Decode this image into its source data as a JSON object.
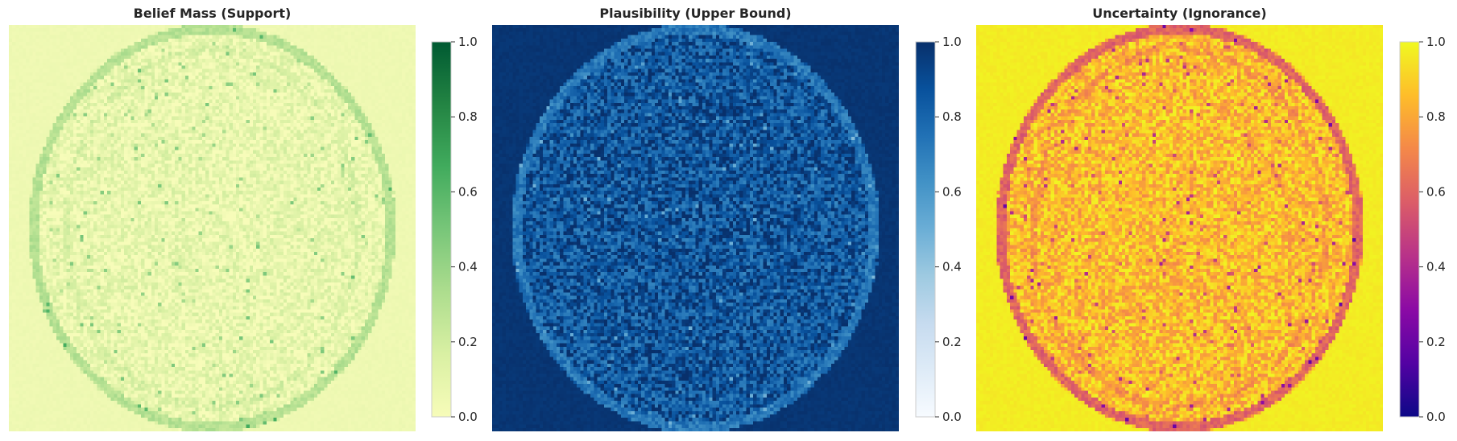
{
  "chart_data": [
    {
      "type": "heatmap",
      "title": "Belief Mass (Support)",
      "xlabel": "",
      "ylabel": "",
      "colormap": "Greens",
      "colorbar": {
        "range": [
          0.0,
          1.0
        ],
        "ticks": [
          "0.0",
          "0.2",
          "0.4",
          "0.6",
          "0.8",
          "1.0"
        ],
        "colors": [
          "#f7fcb9",
          "#d9f0a3",
          "#addd8e",
          "#78c679",
          "#41ab5d",
          "#238443",
          "#005a32"
        ]
      },
      "field": {
        "background": 0.05,
        "interior": 0.08,
        "ring": 0.3,
        "noise": 0.12
      },
      "grid": false
    },
    {
      "type": "heatmap",
      "title": "Plausibility (Upper Bound)",
      "xlabel": "",
      "ylabel": "",
      "colormap": "Blues",
      "colorbar": {
        "range": [
          0.0,
          1.0
        ],
        "ticks": [
          "0.0",
          "0.2",
          "0.4",
          "0.6",
          "0.8",
          "1.0"
        ],
        "colors": [
          "#f7fbff",
          "#deebf7",
          "#c6dbef",
          "#9ecae1",
          "#6baed6",
          "#4292c6",
          "#2171b5",
          "#08519c",
          "#08306b"
        ]
      },
      "field": {
        "background": 0.98,
        "interior": 0.86,
        "ring": 0.72,
        "noise": 0.18
      },
      "grid": false
    },
    {
      "type": "heatmap",
      "title": "Uncertainty (Ignorance)",
      "xlabel": "",
      "ylabel": "",
      "colormap": "plasma",
      "colorbar": {
        "range": [
          0.0,
          1.0
        ],
        "ticks": [
          "0.0",
          "0.2",
          "0.4",
          "0.6",
          "0.8",
          "1.0"
        ],
        "colors": [
          "#0d0887",
          "#5302a3",
          "#8b0aa5",
          "#b83289",
          "#db5c68",
          "#f48849",
          "#febd2a",
          "#f0f921"
        ]
      },
      "field": {
        "background": 0.97,
        "interior": 0.85,
        "ring": 0.6,
        "noise": 0.14
      },
      "grid": false
    }
  ]
}
